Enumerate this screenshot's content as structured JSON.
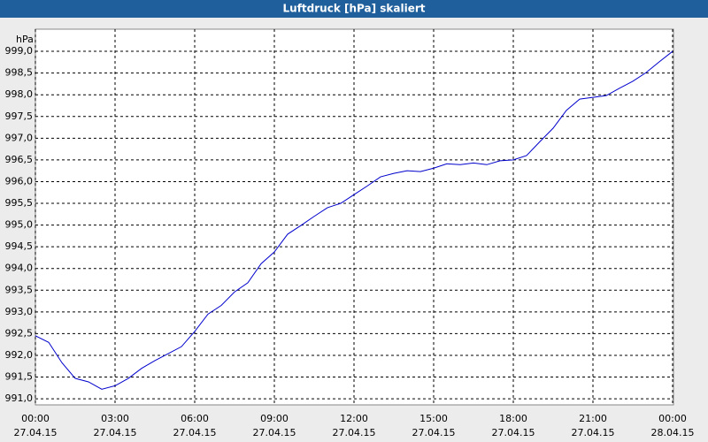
{
  "chart_data": {
    "type": "line",
    "title": "Luftdruck [hPa] skaliert",
    "y_unit": "hPa",
    "x": [
      0,
      0.5,
      1,
      1.5,
      2,
      2.5,
      3,
      3.5,
      4,
      4.5,
      5,
      5.5,
      6,
      6.5,
      7,
      7.5,
      8,
      8.5,
      9,
      9.5,
      10,
      10.5,
      11,
      11.5,
      12,
      12.5,
      13,
      13.5,
      14,
      14.5,
      15,
      15.5,
      16,
      16.5,
      17,
      17.5,
      18,
      18.5,
      19,
      19.5,
      20,
      20.5,
      21,
      21.5,
      22,
      22.5,
      23,
      23.5,
      24
    ],
    "series": [
      {
        "name": "Luftdruck",
        "color": "#0000cc",
        "values": [
          992.45,
          992.3,
          991.83,
          991.47,
          991.39,
          991.22,
          991.3,
          991.47,
          991.7,
          991.88,
          992.04,
          992.2,
          992.55,
          992.95,
          993.15,
          993.46,
          993.67,
          994.11,
          994.38,
          994.79,
          994.99,
          995.2,
          995.4,
          995.5,
          995.7,
          995.9,
          996.11,
          996.19,
          996.25,
          996.23,
          996.31,
          996.41,
          996.39,
          996.43,
          996.39,
          996.48,
          996.5,
          996.6,
          996.92,
          997.23,
          997.64,
          997.9,
          997.94,
          997.98,
          998.15,
          998.31,
          998.51,
          998.76,
          999.0
        ]
      }
    ],
    "xlim": [
      0,
      24
    ],
    "xticks": [
      {
        "value": 0,
        "label": "00:00",
        "date": "27.04.15"
      },
      {
        "value": 3,
        "label": "03:00",
        "date": "27.04.15"
      },
      {
        "value": 6,
        "label": "06:00",
        "date": "27.04.15"
      },
      {
        "value": 9,
        "label": "09:00",
        "date": "27.04.15"
      },
      {
        "value": 12,
        "label": "12:00",
        "date": "27.04.15"
      },
      {
        "value": 15,
        "label": "15:00",
        "date": "27.04.15"
      },
      {
        "value": 18,
        "label": "18:00",
        "date": "27.04.15"
      },
      {
        "value": 21,
        "label": "21:00",
        "date": "27.04.15"
      },
      {
        "value": 24,
        "label": "00:00",
        "date": "28.04.15"
      }
    ],
    "ylim": [
      990.86,
      999.51
    ],
    "yticks": [
      {
        "value": 991,
        "label": "991,0"
      },
      {
        "value": 991.5,
        "label": "991,5"
      },
      {
        "value": 992,
        "label": "992,0"
      },
      {
        "value": 992.5,
        "label": "992,5"
      },
      {
        "value": 993,
        "label": "993,0"
      },
      {
        "value": 993.5,
        "label": "993,5"
      },
      {
        "value": 994,
        "label": "994,0"
      },
      {
        "value": 994.5,
        "label": "994,5"
      },
      {
        "value": 995,
        "label": "995,0"
      },
      {
        "value": 995.5,
        "label": "995,5"
      },
      {
        "value": 996,
        "label": "996,0"
      },
      {
        "value": 996.5,
        "label": "996,5"
      },
      {
        "value": 997,
        "label": "997,0"
      },
      {
        "value": 997.5,
        "label": "997,5"
      },
      {
        "value": 998,
        "label": "998,0"
      },
      {
        "value": 998.5,
        "label": "998,5"
      },
      {
        "value": 999,
        "label": "999,0"
      }
    ],
    "grid": true
  }
}
